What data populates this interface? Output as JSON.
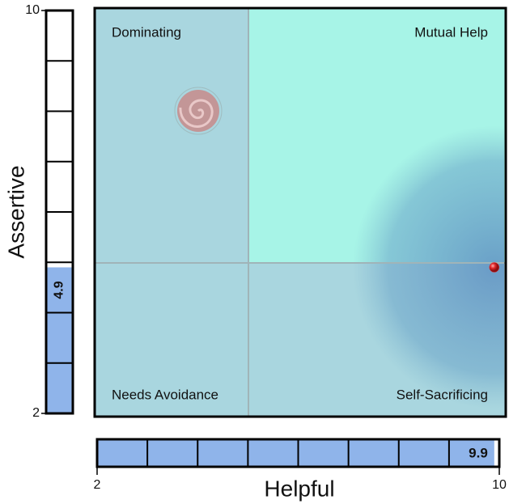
{
  "chart_data": {
    "type": "scatter",
    "x_label": "Helpful",
    "y_label": "Assertive",
    "xlim": [
      2,
      10
    ],
    "ylim": [
      2,
      10
    ],
    "xticks": [
      2,
      10
    ],
    "yticks": [
      2,
      10
    ],
    "annotations": [
      "Dominating",
      "Mutual Help",
      "Needs Avoidance",
      "Self-Sacrificing"
    ],
    "series": [
      {
        "color": "#e0282c",
        "x": [
          9.9
        ],
        "values": [
          4.9
        ]
      }
    ],
    "bar_color": "#8fb4ea"
  }
}
